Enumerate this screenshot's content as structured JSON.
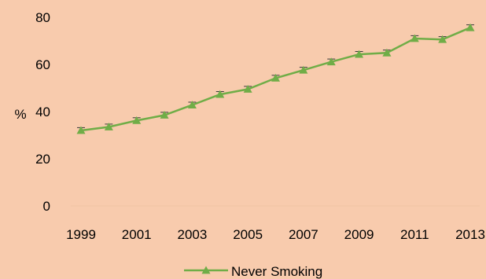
{
  "chart_data": {
    "type": "line",
    "title": "",
    "xlabel": "",
    "ylabel": "%",
    "ylim": [
      0,
      80
    ],
    "yticks": [
      0,
      20,
      40,
      60,
      80
    ],
    "xticks": [
      "1999",
      "2001",
      "2003",
      "2005",
      "2007",
      "2009",
      "2011",
      "2013"
    ],
    "x": [
      1999,
      2000,
      2001,
      2002,
      2003,
      2004,
      2005,
      2006,
      2007,
      2008,
      2009,
      2010,
      2011,
      2012,
      2013
    ],
    "series": [
      {
        "name": "Never Smoking",
        "values": [
          32,
          33.5,
          36.2,
          38.5,
          42.8,
          47.3,
          49.5,
          54.2,
          57.6,
          61.1,
          64.3,
          64.9,
          71.0,
          70.6,
          75.6
        ],
        "error": 1.2,
        "color": "#70AD47"
      }
    ],
    "legend": "bottom",
    "grid": false,
    "background": "#F8CBAD"
  }
}
